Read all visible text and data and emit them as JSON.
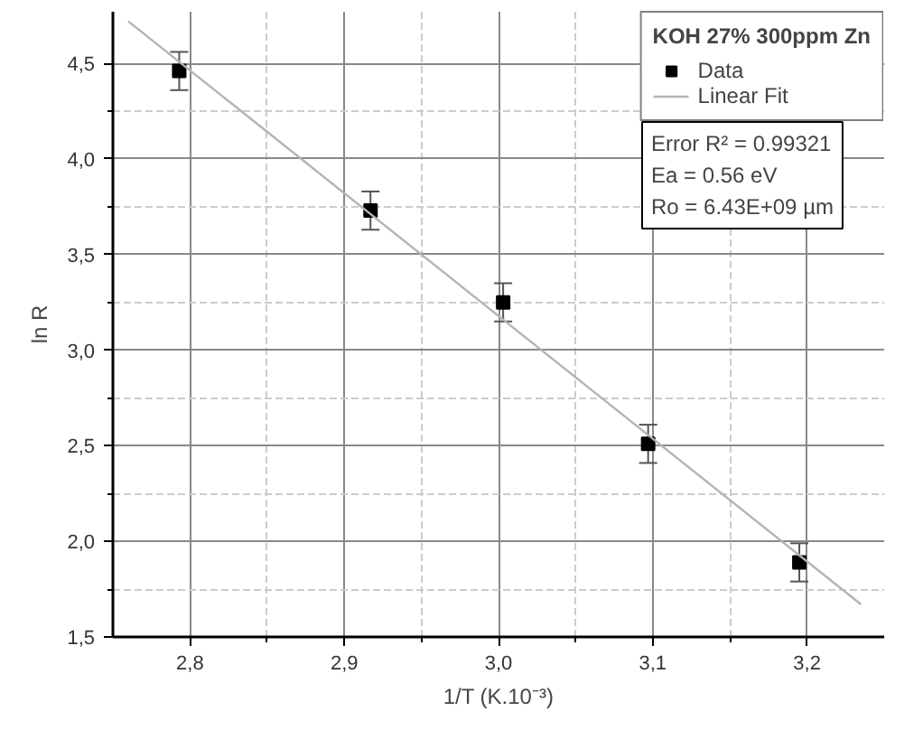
{
  "chart_data": {
    "type": "scatter",
    "xlabel": "1/T (K.10⁻³)",
    "ylabel": "ln R",
    "xlim": [
      2.75,
      3.25
    ],
    "ylim": [
      1.5,
      4.77
    ],
    "xticks": [
      {
        "value": 2.8,
        "label": "2,8"
      },
      {
        "value": 2.9,
        "label": "2,9"
      },
      {
        "value": 3.0,
        "label": "3,0"
      },
      {
        "value": 3.1,
        "label": "3,1"
      },
      {
        "value": 3.2,
        "label": "3,2"
      }
    ],
    "yticks": [
      {
        "value": 1.5,
        "label": "1,5"
      },
      {
        "value": 2.0,
        "label": "2,0"
      },
      {
        "value": 2.5,
        "label": "2,5"
      },
      {
        "value": 3.0,
        "label": "3,0"
      },
      {
        "value": 3.5,
        "label": "3,5"
      },
      {
        "value": 4.0,
        "label": "4,0"
      },
      {
        "value": 4.5,
        "label": "4,5"
      }
    ],
    "series": [
      {
        "name": "Data",
        "color": "#000000",
        "marker": "square",
        "x": [
          2.793,
          2.917,
          3.003,
          3.097,
          3.195
        ],
        "values": [
          4.46,
          3.73,
          3.25,
          2.51,
          1.89
        ],
        "errors": [
          0.1,
          0.1,
          0.1,
          0.1,
          0.1
        ]
      },
      {
        "name": "Linear Fit",
        "type": "line",
        "color": "#b4b4b4",
        "x": [
          2.76,
          3.235
        ],
        "values": [
          4.72,
          1.67
        ]
      }
    ],
    "legend_title": "KOH 27% 300ppm Zn",
    "annotations": [
      "Error R² = 0.99321",
      "Ea = 0.56 eV",
      "Ro = 6.43E+09 µm"
    ],
    "legend": "top right",
    "grid": true
  }
}
